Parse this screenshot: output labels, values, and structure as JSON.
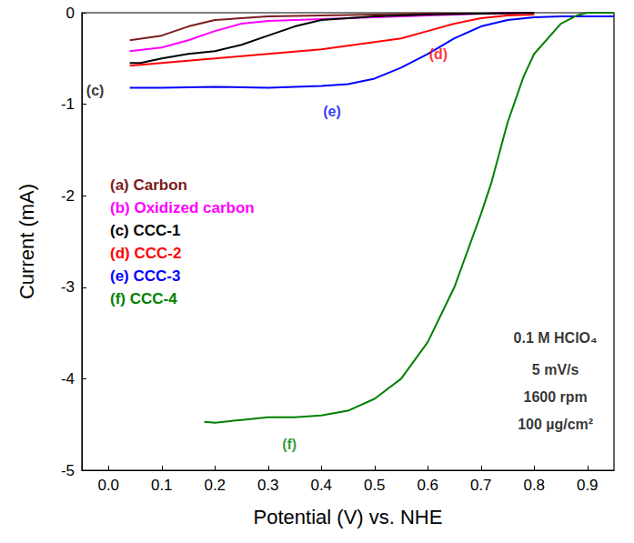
{
  "chart_data": {
    "type": "line",
    "x_label": "Potential (V) vs. NHE",
    "y_label": "Current (mA)",
    "xlim": [
      -0.05,
      0.95
    ],
    "xticks": [
      {
        "value": 0,
        "label": "0.0"
      },
      0.1,
      0.2,
      0.3,
      0.4,
      0.5,
      0.6,
      0.7,
      0.8,
      0.9
    ],
    "ylim": [
      -5,
      0
    ],
    "yticks": [
      0,
      -1,
      -2,
      -3,
      -4,
      -5
    ],
    "grid": false,
    "legend": "left",
    "marker": "none",
    "series": [
      {
        "name": "(a) Carbon",
        "color": "#7b1c1c",
        "x": [
          0.04,
          0.1,
          0.15,
          0.2,
          0.3,
          0.4,
          0.5,
          0.6,
          0.7,
          0.8
        ],
        "values": [
          -0.3,
          -0.25,
          -0.15,
          -0.08,
          -0.04,
          -0.03,
          -0.02,
          -0.01,
          -0.01,
          0
        ]
      },
      {
        "name": "(b) Oxidized carbon",
        "color": "#ff00ff",
        "x": [
          0.04,
          0.1,
          0.15,
          0.2,
          0.25,
          0.3,
          0.4,
          0.5,
          0.6,
          0.7,
          0.8
        ],
        "values": [
          -0.42,
          -0.38,
          -0.3,
          -0.2,
          -0.12,
          -0.09,
          -0.07,
          -0.05,
          -0.03,
          -0.01,
          0
        ]
      },
      {
        "name": "(c) CCC-1",
        "color": "#000000",
        "x": [
          0.04,
          0.06,
          0.1,
          0.15,
          0.2,
          0.25,
          0.3,
          0.35,
          0.4,
          0.5,
          0.6,
          0.7,
          0.8
        ],
        "values": [
          -0.55,
          -0.55,
          -0.5,
          -0.45,
          -0.42,
          -0.35,
          -0.25,
          -0.15,
          -0.08,
          -0.04,
          -0.02,
          -0.01,
          0
        ]
      },
      {
        "name": "(d) CCC-2",
        "color": "#ff0000",
        "x": [
          0.04,
          0.1,
          0.2,
          0.3,
          0.4,
          0.5,
          0.55,
          0.6,
          0.65,
          0.7,
          0.75,
          0.8
        ],
        "values": [
          -0.58,
          -0.55,
          -0.5,
          -0.45,
          -0.4,
          -0.32,
          -0.28,
          -0.2,
          -0.12,
          -0.06,
          -0.03,
          -0.02
        ]
      },
      {
        "name": "(e) CCC-3",
        "color": "#0000ff",
        "x": [
          0.04,
          0.1,
          0.2,
          0.3,
          0.4,
          0.45,
          0.5,
          0.55,
          0.6,
          0.65,
          0.7,
          0.75,
          0.8,
          0.85,
          0.9,
          0.95
        ],
        "values": [
          -0.82,
          -0.82,
          -0.81,
          -0.82,
          -0.8,
          -0.78,
          -0.72,
          -0.6,
          -0.45,
          -0.28,
          -0.15,
          -0.08,
          -0.05,
          -0.04,
          -0.04,
          -0.04
        ]
      },
      {
        "name": "(f) CCC-4",
        "color": "#008000",
        "x": [
          0.18,
          0.2,
          0.25,
          0.3,
          0.35,
          0.4,
          0.45,
          0.5,
          0.55,
          0.6,
          0.65,
          0.7,
          0.72,
          0.75,
          0.78,
          0.8,
          0.85,
          0.88,
          0.9,
          0.95
        ],
        "values": [
          -4.47,
          -4.48,
          -4.45,
          -4.42,
          -4.42,
          -4.4,
          -4.35,
          -4.22,
          -4.0,
          -3.6,
          -3.0,
          -2.2,
          -1.85,
          -1.2,
          -0.7,
          -0.45,
          -0.12,
          -0.03,
          0,
          0
        ]
      }
    ],
    "annotations": [
      {
        "text": "(c)",
        "x": -0.025,
        "y": -0.85,
        "color": "#000000"
      },
      {
        "text": "(d)",
        "x": 0.62,
        "y": -0.45,
        "color": "#ff0000"
      },
      {
        "text": "(e)",
        "x": 0.42,
        "y": -1.08,
        "color": "#0000ff"
      },
      {
        "text": "(f)",
        "x": 0.34,
        "y": -4.72,
        "color": "#008000"
      },
      {
        "text": "0.1 M HClO₄",
        "x": 0.84,
        "y": -3.55,
        "color": "#000000"
      },
      {
        "text": "5 mV/s",
        "x": 0.84,
        "y": -3.9,
        "color": "#000000"
      },
      {
        "text": "1600 rpm",
        "x": 0.84,
        "y": -4.2,
        "color": "#000000"
      },
      {
        "text": "100 µg/cm²",
        "x": 0.84,
        "y": -4.5,
        "color": "#000000"
      }
    ]
  }
}
